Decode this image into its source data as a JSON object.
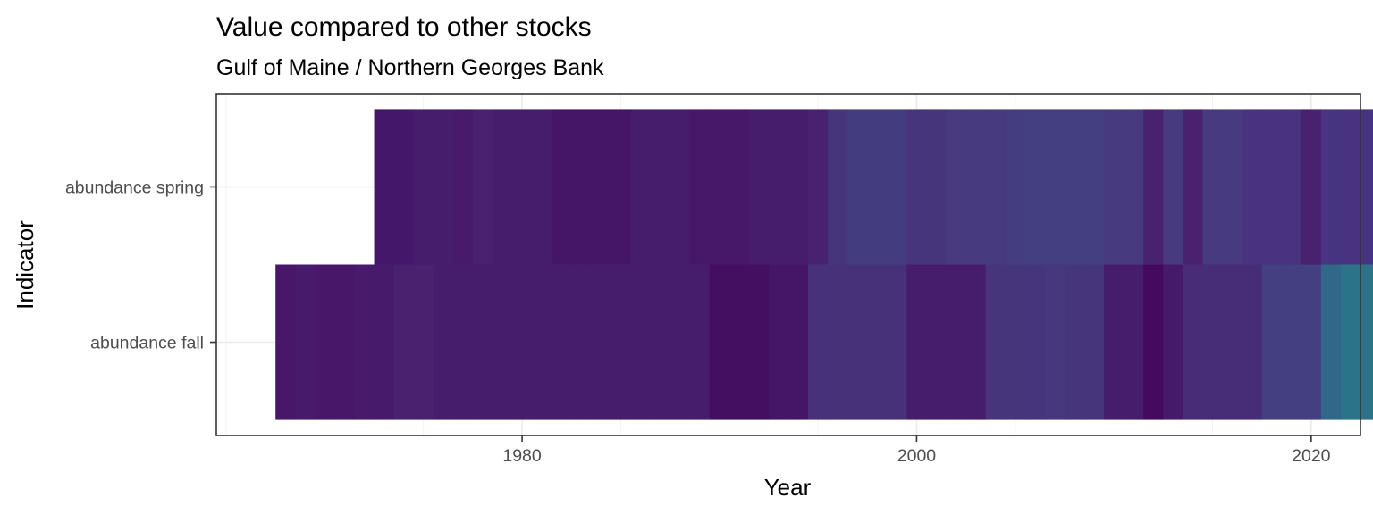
{
  "chart_data": {
    "type": "heatmap",
    "title": "Value compared to other stocks",
    "subtitle": "Gulf of Maine / Northern Georges Bank",
    "xlabel": "Year",
    "ylabel": "Indicator",
    "xlim": [
      1964.5,
      2022.5
    ],
    "x_ticks": [
      1980,
      2000,
      2020
    ],
    "grid": true,
    "legend": "none",
    "rows": [
      {
        "name": "abundance spring",
        "start": 1973,
        "colors": [
          "#45176a",
          "#45176a",
          "#461c6c",
          "#461c6c",
          "#471a6b",
          "#48216f",
          "#461c6c",
          "#461c6c",
          "#461c6c",
          "#451668",
          "#451668",
          "#451668",
          "#451668",
          "#461c6c",
          "#461c6c",
          "#461c6c",
          "#47176a",
          "#47176a",
          "#47176a",
          "#461c6c",
          "#461c6c",
          "#461c6c",
          "#482271",
          "#47357c",
          "#433d80",
          "#433d80",
          "#433d80",
          "#47357c",
          "#47357c",
          "#473a7f",
          "#473a7f",
          "#473a7f",
          "#443e80",
          "#433f80",
          "#433f80",
          "#433f80",
          "#433f80",
          "#473a7f",
          "#473a7f",
          "#48216f",
          "#473a7f",
          "#48226f",
          "#473a7f",
          "#473a7f",
          "#473380",
          "#473380",
          "#473380",
          "#48216f",
          "#473380",
          "#473380",
          "#473380",
          "#473380",
          "#433f80",
          "#3e4a87",
          "#3e4a87"
        ]
      },
      {
        "name": "abundance fall",
        "start": 1968,
        "colors": [
          "#481769",
          "#471a6b",
          "#481769",
          "#481769",
          "#471a6b",
          "#471a6b",
          "#48216f",
          "#48216f",
          "#461c6c",
          "#461c6c",
          "#461c6c",
          "#461c6c",
          "#461c6c",
          "#461c6c",
          "#461c6c",
          "#461c6c",
          "#461c6c",
          "#461c6c",
          "#461c6c",
          "#461c6c",
          "#461c6c",
          "#461c6c",
          "#440f61",
          "#440f61",
          "#440f61",
          "#451668",
          "#451668",
          "#47327a",
          "#47327a",
          "#47327a",
          "#47327a",
          "#47327a",
          "#461c6c",
          "#461c6c",
          "#461c6c",
          "#461c6c",
          "#47357c",
          "#47357c",
          "#47357c",
          "#47387e",
          "#47357c",
          "#47357c",
          "#461c6c",
          "#461c6c",
          "#440a5d",
          "#461a6a",
          "#472c77",
          "#472c77",
          "#472c77",
          "#472c77",
          "#433f80",
          "#433f80",
          "#433f80",
          "#2f6888",
          "#2a7389",
          "#2a7389",
          "#2a7389",
          "#2a7389"
        ]
      }
    ]
  }
}
